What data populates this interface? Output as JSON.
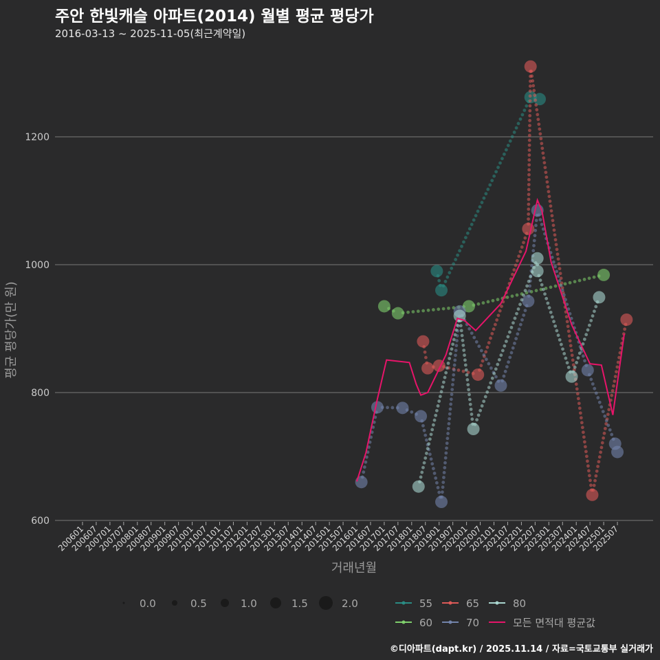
{
  "title": "주안 한빛캐슬 아파트(2014) 월별 평균 평당가",
  "subtitle": "2016-03-13 ~ 2025-11-05(최근계약일)",
  "footer": "©디아파트(dapt.kr) / 2025.11.14 / 자료=국토교통부 실거래가",
  "chart_data": {
    "type": "scatter",
    "xlabel": "거래년월",
    "ylabel": "평균 평당가(만 원)",
    "ylim": [
      600,
      1310
    ],
    "yticks": [
      600,
      800,
      1000,
      1200
    ],
    "xticks": [
      "200601",
      "200607",
      "200701",
      "200707",
      "200801",
      "200807",
      "200901",
      "200907",
      "201001",
      "201007",
      "201101",
      "201107",
      "201201",
      "201207",
      "201301",
      "201307",
      "201401",
      "201407",
      "201501",
      "201507",
      "201601",
      "201607",
      "201701",
      "201707",
      "201801",
      "201807",
      "201901",
      "201907",
      "202001",
      "202007",
      "202101",
      "202107",
      "202201",
      "202207",
      "202301",
      "202307",
      "202401",
      "202407",
      "202501",
      "202507"
    ],
    "size_legend": {
      "values": [
        "0.0",
        "0.5",
        "1.0",
        "1.5",
        "2.0"
      ]
    },
    "series": [
      {
        "name": "55",
        "color": "#2a8c84",
        "points": [
          [
            "2018-12",
            990
          ],
          [
            "2019-02",
            960
          ],
          [
            "2022-05",
            1262
          ],
          [
            "2022-09",
            1259
          ]
        ]
      },
      {
        "name": "60",
        "color": "#7fcf6c",
        "points": [
          [
            "2017-01",
            935
          ],
          [
            "2017-07",
            924
          ],
          [
            "2020-02",
            935
          ],
          [
            "2025-01",
            984
          ]
        ]
      },
      {
        "name": "65",
        "color": "#dd5a58",
        "points": [
          [
            "2018-06",
            880
          ],
          [
            "2018-08",
            838
          ],
          [
            "2019-01",
            842
          ],
          [
            "2020-06",
            828
          ],
          [
            "2022-04",
            1056
          ],
          [
            "2022-05",
            1310
          ],
          [
            "2024-08",
            640
          ],
          [
            "2025-11",
            914
          ]
        ]
      },
      {
        "name": "70",
        "color": "#7384ab",
        "points": [
          [
            "2016-03",
            660
          ],
          [
            "2016-10",
            777
          ],
          [
            "2017-09",
            776
          ],
          [
            "2018-05",
            763
          ],
          [
            "2019-02",
            629
          ],
          [
            "2019-10",
            927
          ],
          [
            "2021-04",
            811
          ],
          [
            "2022-04",
            943
          ],
          [
            "2022-08",
            1085
          ],
          [
            "2024-06",
            835
          ],
          [
            "2025-06",
            720
          ],
          [
            "2025-07",
            707
          ]
        ]
      },
      {
        "name": "80",
        "color": "#a9d6cf",
        "points": [
          [
            "2018-04",
            653
          ],
          [
            "2019-10",
            920
          ],
          [
            "2020-04",
            743
          ],
          [
            "2022-08",
            1010
          ],
          [
            "2022-08",
            990
          ],
          [
            "2023-11",
            825
          ],
          [
            "2024-11",
            949
          ]
        ]
      },
      {
        "name": "모든 면적대 평균값",
        "color": "#e8146a",
        "line": true,
        "points": [
          [
            "2016-01",
            661
          ],
          [
            "2016-05",
            706
          ],
          [
            "2016-10",
            790
          ],
          [
            "2017-02",
            851
          ],
          [
            "2017-12",
            847
          ],
          [
            "2018-03",
            813
          ],
          [
            "2018-05",
            796
          ],
          [
            "2018-08",
            800
          ],
          [
            "2019-04",
            859
          ],
          [
            "2019-09",
            916
          ],
          [
            "2019-12",
            913
          ],
          [
            "2020-05",
            897
          ],
          [
            "2021-04",
            939
          ],
          [
            "2022-03",
            1021
          ],
          [
            "2022-08",
            1101
          ],
          [
            "2022-10",
            1084
          ],
          [
            "2023-02",
            1004
          ],
          [
            "2023-11",
            906
          ],
          [
            "2024-07",
            845
          ],
          [
            "2024-12",
            843
          ],
          [
            "2025-05",
            765
          ],
          [
            "2025-10",
            892
          ]
        ]
      }
    ]
  }
}
